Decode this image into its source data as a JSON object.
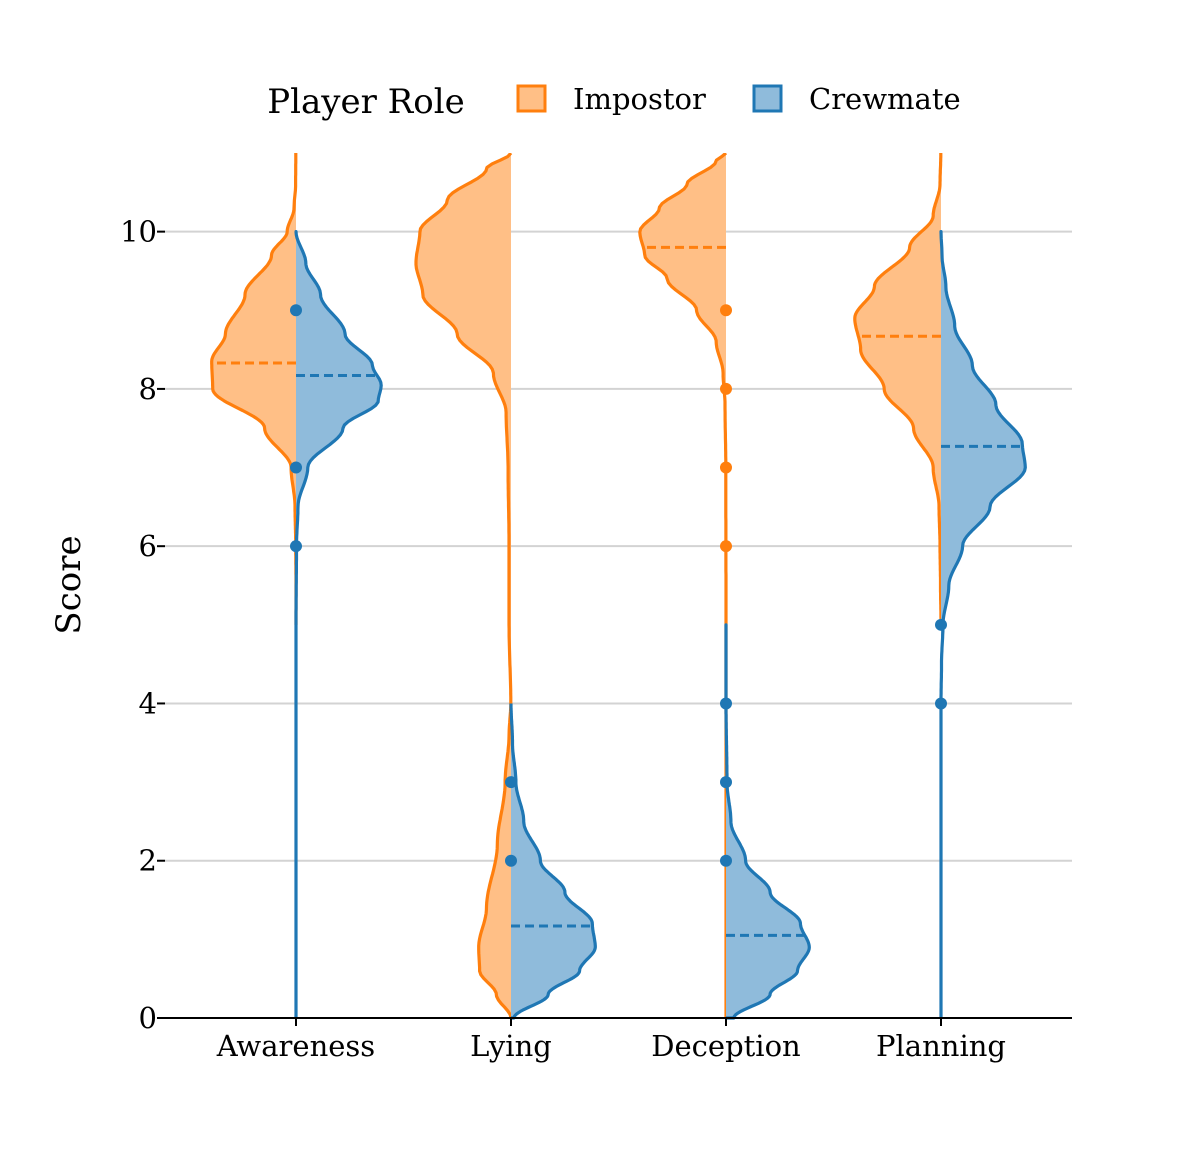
{
  "chart_data": {
    "type": "violin",
    "subtype": "split",
    "title": "",
    "xlabel": "",
    "ylabel": "Score",
    "ylim": [
      0,
      11
    ],
    "yticks": [
      0,
      2,
      4,
      6,
      8,
      10
    ],
    "grid": true,
    "categories": [
      "Awareness",
      "Lying",
      "Deception",
      "Planning"
    ],
    "legend": {
      "title": "Player Role",
      "placement": "top-center",
      "entries": [
        "Impostor",
        "Crewmate"
      ]
    },
    "series": [
      {
        "name": "Impostor",
        "side": "left",
        "color": "#ff7f0e",
        "fill": "#ffbf86",
        "violins": [
          {
            "category": "Awareness",
            "mean": 8.33,
            "y_min": 5.0,
            "y_max": 11.0,
            "density": [
              [
                5.0,
                0.0
              ],
              [
                5.5,
                0.0
              ],
              [
                6.0,
                0.003
              ],
              [
                6.5,
                0.01
              ],
              [
                7.0,
                0.05
              ],
              [
                7.5,
                0.32
              ],
              [
                8.0,
                0.85
              ],
              [
                8.35,
                0.86
              ],
              [
                8.7,
                0.72
              ],
              [
                9.2,
                0.52
              ],
              [
                9.7,
                0.25
              ],
              [
                10.0,
                0.09
              ],
              [
                10.3,
                0.02
              ],
              [
                10.6,
                0.004
              ],
              [
                11.0,
                0.002
              ]
            ],
            "outliers": []
          },
          {
            "category": "Lying",
            "mean": null,
            "y_min": 0.0,
            "y_max": 11.0,
            "density": [
              [
                0.0,
                0.0
              ],
              [
                0.3,
                0.15
              ],
              [
                0.6,
                0.32
              ],
              [
                0.9,
                0.33
              ],
              [
                1.4,
                0.25
              ],
              [
                2.2,
                0.14
              ],
              [
                3.0,
                0.06
              ],
              [
                3.6,
                0.02
              ],
              [
                4.0,
                0.002
              ],
              [
                5.0,
                0.02
              ],
              [
                6.0,
                0.02
              ],
              [
                7.0,
                0.03
              ],
              [
                7.7,
                0.05
              ],
              [
                8.2,
                0.18
              ],
              [
                8.7,
                0.55
              ],
              [
                9.2,
                0.9
              ],
              [
                9.6,
                0.97
              ],
              [
                10.0,
                0.93
              ],
              [
                10.4,
                0.65
              ],
              [
                10.8,
                0.25
              ],
              [
                11.0,
                0.0
              ]
            ],
            "outliers": []
          },
          {
            "category": "Deception",
            "mean": 9.8,
            "y_min": 0.0,
            "y_max": 11.0,
            "density": [
              [
                0.0,
                0.0
              ],
              [
                5.0,
                0.0
              ],
              [
                7.0,
                0.002
              ],
              [
                7.8,
                0.01
              ],
              [
                8.2,
                0.03
              ],
              [
                8.6,
                0.1
              ],
              [
                9.0,
                0.3
              ],
              [
                9.4,
                0.6
              ],
              [
                9.7,
                0.83
              ],
              [
                10.0,
                0.88
              ],
              [
                10.3,
                0.68
              ],
              [
                10.6,
                0.4
              ],
              [
                10.9,
                0.1
              ],
              [
                11.0,
                0.0
              ]
            ],
            "outliers": [
              6,
              7,
              8,
              9
            ]
          },
          {
            "category": "Planning",
            "mean": 8.67,
            "y_min": 5.0,
            "y_max": 11.0,
            "density": [
              [
                5.0,
                0.0
              ],
              [
                5.5,
                0.005
              ],
              [
                6.0,
                0.01
              ],
              [
                6.5,
                0.02
              ],
              [
                7.0,
                0.08
              ],
              [
                7.5,
                0.28
              ],
              [
                8.0,
                0.58
              ],
              [
                8.5,
                0.82
              ],
              [
                8.9,
                0.88
              ],
              [
                9.3,
                0.68
              ],
              [
                9.8,
                0.32
              ],
              [
                10.2,
                0.08
              ],
              [
                10.6,
                0.01
              ],
              [
                11.0,
                0.002
              ]
            ],
            "outliers": []
          }
        ]
      },
      {
        "name": "Crewmate",
        "side": "right",
        "color": "#1f77b4",
        "fill": "#8fbbdb",
        "violins": [
          {
            "category": "Awareness",
            "mean": 8.17,
            "y_min": 0.0,
            "y_max": 10.0,
            "density": [
              [
                0.0,
                0.0
              ],
              [
                5.0,
                0.0
              ],
              [
                6.0,
                0.005
              ],
              [
                6.5,
                0.02
              ],
              [
                7.0,
                0.12
              ],
              [
                7.5,
                0.48
              ],
              [
                7.85,
                0.84
              ],
              [
                8.05,
                0.87
              ],
              [
                8.3,
                0.78
              ],
              [
                8.7,
                0.5
              ],
              [
                9.2,
                0.25
              ],
              [
                9.6,
                0.1
              ],
              [
                10.0,
                0.0
              ]
            ],
            "outliers": [
              6,
              7,
              9
            ]
          },
          {
            "category": "Lying",
            "mean": 1.17,
            "y_min": 0.0,
            "y_max": 4.0,
            "density": [
              [
                0.0,
                0.03
              ],
              [
                0.3,
                0.38
              ],
              [
                0.6,
                0.7
              ],
              [
                0.9,
                0.86
              ],
              [
                1.2,
                0.83
              ],
              [
                1.6,
                0.55
              ],
              [
                2.0,
                0.3
              ],
              [
                2.5,
                0.13
              ],
              [
                3.0,
                0.05
              ],
              [
                3.5,
                0.015
              ],
              [
                4.0,
                0.0
              ]
            ],
            "outliers": [
              2,
              3
            ]
          },
          {
            "category": "Deception",
            "mean": 1.05,
            "y_min": 0.0,
            "y_max": 5.0,
            "density": [
              [
                0.0,
                0.08
              ],
              [
                0.3,
                0.45
              ],
              [
                0.6,
                0.73
              ],
              [
                0.9,
                0.85
              ],
              [
                1.2,
                0.76
              ],
              [
                1.6,
                0.45
              ],
              [
                2.0,
                0.2
              ],
              [
                2.5,
                0.05
              ],
              [
                3.0,
                0.01
              ],
              [
                4.0,
                0.0
              ],
              [
                5.0,
                0.0
              ]
            ],
            "outliers": [
              2,
              3,
              4
            ]
          },
          {
            "category": "Planning",
            "mean": 7.27,
            "y_min": 0.0,
            "y_max": 10.0,
            "density": [
              [
                0.0,
                0.0
              ],
              [
                4.0,
                0.0
              ],
              [
                4.5,
                0.005
              ],
              [
                5.0,
                0.02
              ],
              [
                5.5,
                0.08
              ],
              [
                6.0,
                0.22
              ],
              [
                6.5,
                0.5
              ],
              [
                7.0,
                0.86
              ],
              [
                7.3,
                0.83
              ],
              [
                7.8,
                0.56
              ],
              [
                8.3,
                0.32
              ],
              [
                8.8,
                0.14
              ],
              [
                9.3,
                0.05
              ],
              [
                9.7,
                0.01
              ],
              [
                10.0,
                0.0
              ]
            ],
            "outliers": [
              4,
              5
            ]
          }
        ]
      }
    ]
  }
}
